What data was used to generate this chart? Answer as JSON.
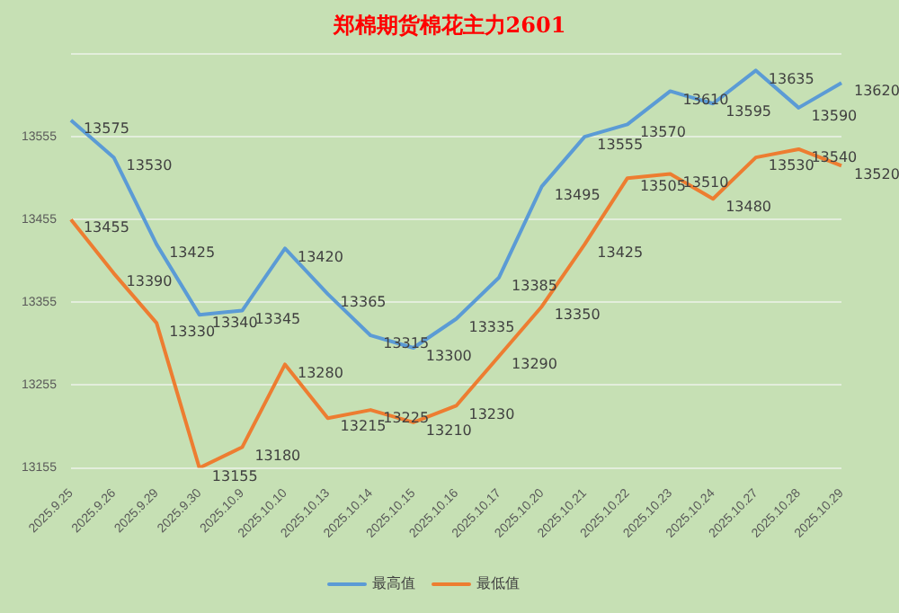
{
  "chart_data": {
    "type": "line",
    "title": "郑棉期货棉花主力2601",
    "categories": [
      "2025.9.25",
      "2025.9.26",
      "2025.9.29",
      "2025.9.30",
      "2025.10.9",
      "2025.10.10",
      "2025.10.13",
      "2025.10.14",
      "2025.10.15",
      "2025.10.16",
      "2025.10.17",
      "2025.10.20",
      "2025.10.21",
      "2025.10.22",
      "2025.10.23",
      "2025.10.24",
      "2025.10.27",
      "2025.10.28",
      "2025.10.29"
    ],
    "series": [
      {
        "name": "最高值",
        "color": "#5b9bd5",
        "values": [
          13575,
          13530,
          13425,
          13340,
          13345,
          13420,
          13365,
          13315,
          13300,
          13335,
          13385,
          13495,
          13555,
          13570,
          13610,
          13595,
          13635,
          13590,
          13620
        ]
      },
      {
        "name": "最低值",
        "color": "#ed7d31",
        "values": [
          13455,
          13390,
          13330,
          13155,
          13180,
          13280,
          13215,
          13225,
          13210,
          13230,
          13290,
          13350,
          13425,
          13505,
          13510,
          13480,
          13530,
          13540,
          13520
        ]
      }
    ],
    "ylim": [
      13155,
      13655
    ],
    "yticks": [
      13155,
      13255,
      13355,
      13455,
      13555,
      {
        "value": 13655,
        "label": null
      }
    ],
    "grid": "y",
    "legend": "bottom",
    "data_labels": true,
    "marker": "none",
    "line_style": "solid"
  }
}
